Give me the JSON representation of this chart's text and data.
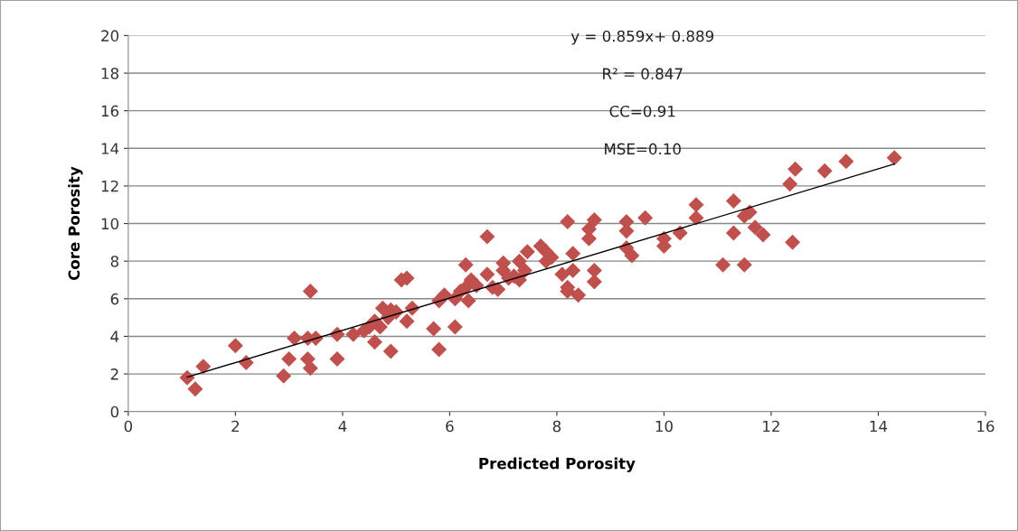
{
  "chart_data": {
    "type": "scatter",
    "xlabel": "Predicted Porosity",
    "ylabel": "Core Porosity",
    "xlim": [
      0,
      16
    ],
    "xticks": [
      0,
      2,
      4,
      6,
      8,
      10,
      12,
      14,
      16
    ],
    "ylim": [
      0,
      20
    ],
    "yticks": [
      0,
      2,
      4,
      6,
      8,
      10,
      12,
      14,
      16,
      18,
      20
    ],
    "grid": "y",
    "annotations": [
      "y = 0.859x+ 0.889",
      "R² = 0.847",
      "CC=0.91",
      "MSE=0.10"
    ],
    "series": [
      {
        "marker": "diamond",
        "color": "#c0504d",
        "x": [
          1.1,
          1.25,
          1.4,
          2.0,
          2.2,
          2.9,
          3.0,
          3.1,
          3.35,
          3.4,
          3.4,
          3.35,
          3.5,
          3.9,
          3.9,
          4.2,
          4.4,
          4.5,
          4.6,
          4.6,
          4.7,
          4.75,
          4.85,
          4.9,
          4.9,
          5.0,
          5.1,
          5.2,
          5.2,
          5.3,
          5.7,
          5.8,
          5.8,
          5.9,
          6.1,
          6.1,
          6.2,
          6.3,
          6.3,
          6.35,
          6.4,
          6.5,
          6.7,
          6.7,
          6.8,
          6.9,
          7.0,
          7.0,
          7.1,
          7.2,
          7.3,
          7.3,
          7.4,
          7.45,
          7.7,
          7.8,
          7.8,
          7.9,
          8.1,
          8.2,
          8.2,
          8.2,
          8.3,
          8.3,
          8.4,
          8.6,
          8.6,
          8.7,
          8.7,
          8.7,
          9.3,
          9.3,
          9.3,
          9.4,
          9.65,
          10.0,
          10.0,
          10.3,
          10.6,
          10.6,
          11.1,
          11.3,
          11.3,
          11.5,
          11.5,
          11.6,
          11.7,
          11.85,
          12.35,
          12.4,
          12.45,
          13.0,
          13.4,
          14.3
        ],
        "values": [
          1.8,
          1.2,
          2.4,
          3.5,
          2.6,
          1.9,
          2.8,
          3.9,
          2.8,
          2.3,
          6.4,
          3.9,
          3.9,
          2.8,
          4.1,
          4.1,
          4.3,
          4.5,
          3.7,
          4.8,
          4.5,
          5.5,
          5.0,
          3.2,
          5.4,
          5.3,
          7.0,
          4.8,
          7.1,
          5.5,
          4.4,
          3.3,
          5.9,
          6.2,
          4.5,
          6.0,
          6.4,
          6.6,
          7.8,
          5.9,
          7.0,
          6.7,
          9.3,
          7.3,
          6.6,
          6.5,
          7.5,
          7.9,
          7.1,
          7.2,
          7.0,
          8.0,
          7.5,
          8.5,
          8.8,
          8.5,
          8.0,
          8.2,
          7.3,
          6.6,
          6.4,
          10.1,
          8.4,
          7.5,
          6.2,
          9.2,
          9.7,
          10.2,
          7.5,
          6.9,
          9.6,
          10.1,
          8.7,
          8.3,
          10.3,
          9.2,
          8.8,
          9.5,
          10.3,
          11.0,
          7.8,
          11.2,
          9.5,
          10.4,
          7.8,
          10.6,
          9.8,
          9.4,
          12.1,
          9.0,
          12.9,
          12.8,
          13.3,
          13.5
        ]
      },
      {
        "type": "line",
        "marker": "none",
        "color": "#000000",
        "x": [
          1.1,
          14.3
        ],
        "values": [
          1.83,
          13.17
        ]
      }
    ]
  }
}
